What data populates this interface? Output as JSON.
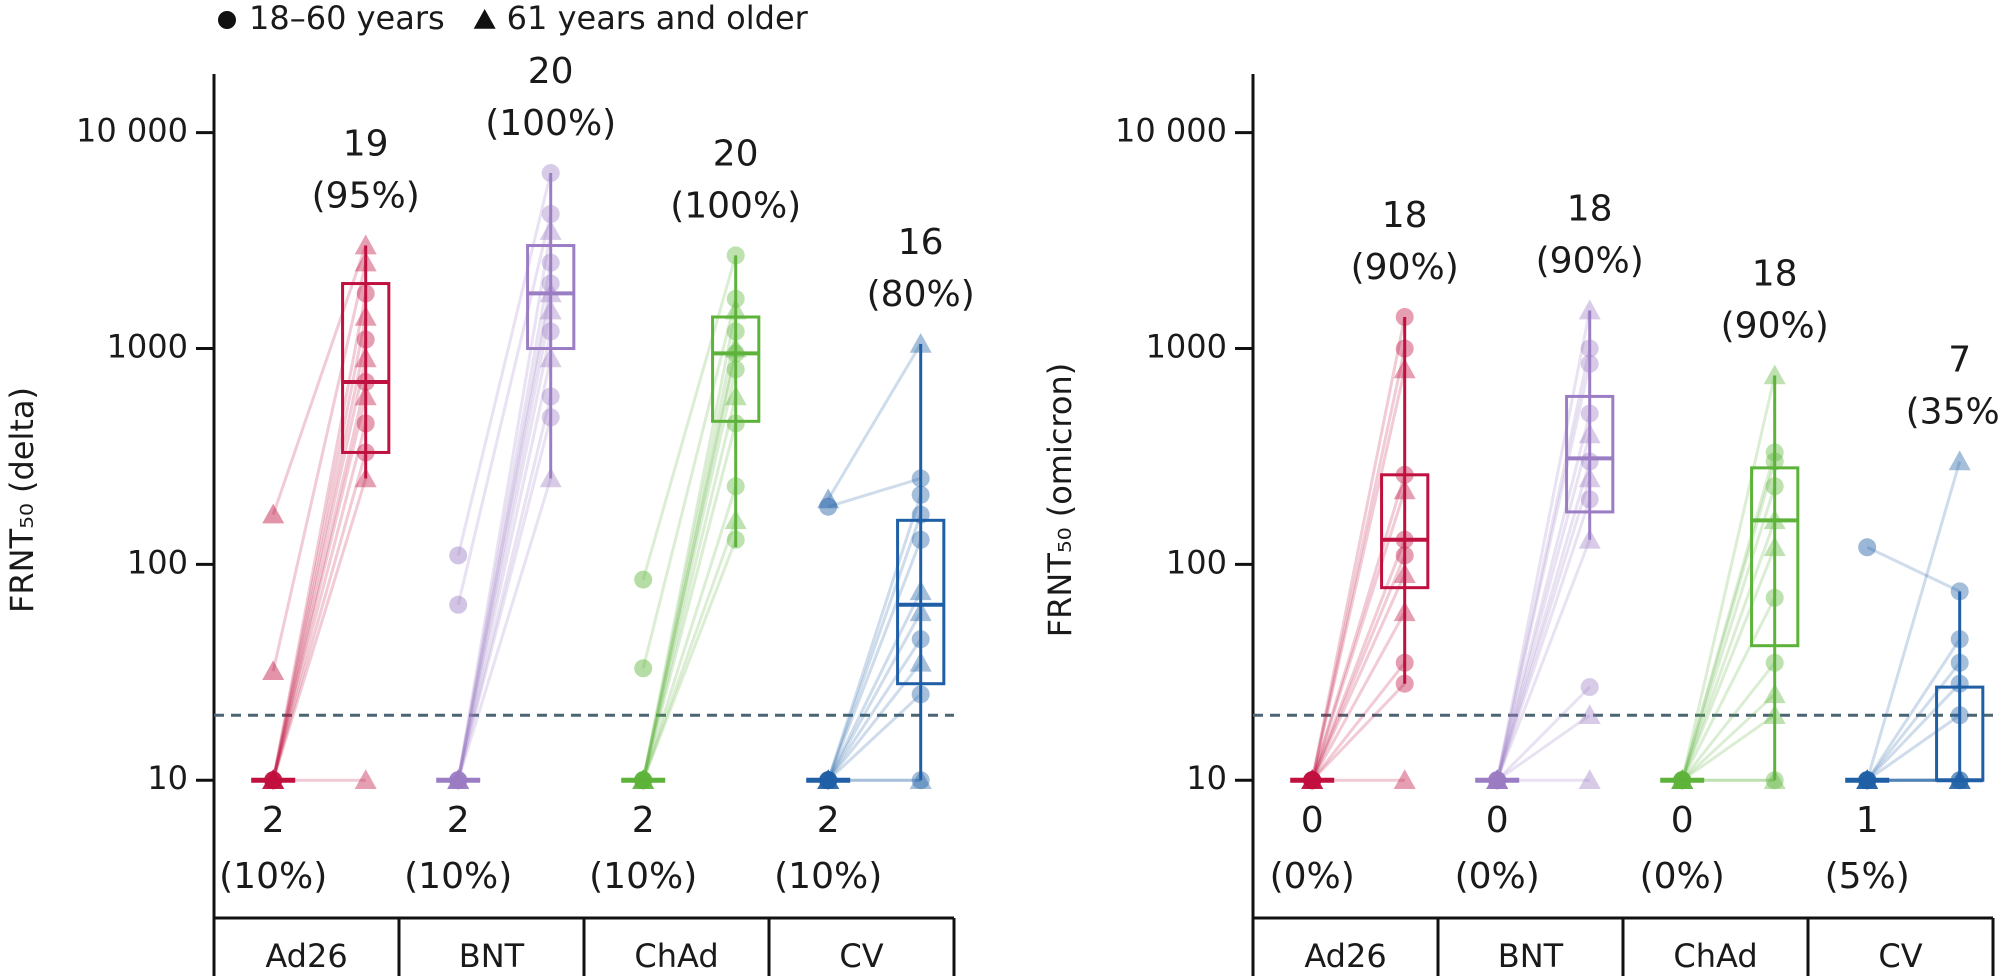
{
  "chart_data": [
    {
      "type": "box",
      "ylabel": "FRNT₅₀ (delta)",
      "log_scale": true,
      "ylim": [
        2.3,
        18700
      ],
      "yticks": [
        10,
        100,
        1000,
        {
          "value": 10000,
          "label": "10 000"
        }
      ],
      "threshold": 20,
      "threshold_color": "#4a6472",
      "legend": [
        {
          "label": "18–60 years",
          "marker": "circle"
        },
        {
          "label": "61 years and older",
          "marker": "triangle"
        }
      ],
      "categories": [
        "Ad26",
        "BNT",
        "ChAd",
        "CV"
      ],
      "groups": [
        {
          "color": "#c0103f",
          "baseline_median": 10,
          "baseline": [
            170,
            32,
            10,
            10,
            10,
            10,
            10,
            10,
            10,
            10,
            10,
            10
          ],
          "followup": [
            3000,
            2500,
            1800,
            1400,
            1100,
            900,
            700,
            600,
            450,
            330,
            250,
            10
          ],
          "markers": [
            "triangle",
            "triangle",
            "circle",
            "triangle",
            "circle",
            "triangle",
            "circle",
            "triangle",
            "circle",
            "circle",
            "triangle",
            "triangle"
          ],
          "whisker_low": 250,
          "q1": 330,
          "median": 700,
          "q3": 2000,
          "whisker_high": 3000,
          "above_count": 19,
          "above_label": "(95%)",
          "below_count": 2,
          "below_label": "(10%)"
        },
        {
          "color": "#9b7dc4",
          "baseline_median": 10,
          "baseline": [
            110,
            65,
            10,
            10,
            10,
            10,
            10,
            10,
            10,
            10,
            10,
            10
          ],
          "followup": [
            6500,
            4200,
            3500,
            2500,
            2000,
            1800,
            1500,
            1200,
            900,
            600,
            480,
            250
          ],
          "markers": [
            "circle",
            "circle",
            "triangle",
            "circle",
            "circle",
            "triangle",
            "triangle",
            "circle",
            "triangle",
            "circle",
            "circle",
            "triangle"
          ],
          "whisker_low": 250,
          "q1": 1000,
          "median": 1800,
          "q3": 3000,
          "whisker_high": 6500,
          "above_count": 20,
          "above_label": "(100%)",
          "below_count": 2,
          "below_label": "(10%)"
        },
        {
          "color": "#5db33a",
          "baseline_median": 10,
          "baseline": [
            85,
            33,
            10,
            10,
            10,
            10,
            10,
            10,
            10,
            10,
            10,
            10
          ],
          "followup": [
            2700,
            1700,
            1500,
            1200,
            1000,
            950,
            800,
            600,
            450,
            230,
            160,
            130
          ],
          "markers": [
            "circle",
            "circle",
            "triangle",
            "circle",
            "triangle",
            "circle",
            "circle",
            "triangle",
            "circle",
            "circle",
            "triangle",
            "circle"
          ],
          "whisker_low": 120,
          "q1": 460,
          "median": 950,
          "q3": 1400,
          "whisker_high": 2700,
          "above_count": 20,
          "above_label": "(100%)",
          "below_count": 2,
          "below_label": "(10%)"
        },
        {
          "color": "#1f5fa6",
          "baseline_median": 10,
          "baseline": [
            200,
            185,
            10,
            10,
            10,
            10,
            10,
            10,
            10,
            10,
            10,
            10
          ],
          "followup": [
            1050,
            250,
            210,
            170,
            130,
            75,
            60,
            45,
            35,
            25,
            10,
            10
          ],
          "markers": [
            "triangle",
            "circle",
            "circle",
            "circle",
            "circle",
            "triangle",
            "triangle",
            "circle",
            "triangle",
            "circle",
            "triangle",
            "circle"
          ],
          "whisker_low": 10,
          "q1": 28,
          "median": 65,
          "q3": 160,
          "whisker_high": 1050,
          "above_count": 16,
          "above_label": "(80%)",
          "below_count": 2,
          "below_label": "(10%)"
        }
      ]
    },
    {
      "type": "box",
      "ylabel": "FRNT₅₀ (omicron)",
      "log_scale": true,
      "ylim": [
        2.3,
        18700
      ],
      "yticks": [
        10,
        100,
        1000,
        {
          "value": 10000,
          "label": "10 000"
        }
      ],
      "threshold": 20,
      "threshold_color": "#4a6472",
      "categories": [
        "Ad26",
        "BNT",
        "ChAd",
        "CV"
      ],
      "groups": [
        {
          "color": "#c0103f",
          "baseline_median": 10,
          "baseline": [
            10,
            10,
            10,
            10,
            10,
            10,
            10,
            10,
            10,
            10,
            10,
            10
          ],
          "followup": [
            1400,
            1000,
            800,
            260,
            220,
            130,
            110,
            90,
            60,
            35,
            28,
            10
          ],
          "markers": [
            "circle",
            "circle",
            "triangle",
            "circle",
            "triangle",
            "circle",
            "circle",
            "triangle",
            "triangle",
            "circle",
            "circle",
            "triangle"
          ],
          "whisker_low": 28,
          "q1": 78,
          "median": 130,
          "q3": 260,
          "whisker_high": 1400,
          "above_count": 18,
          "above_label": "(90%)",
          "below_count": 0,
          "below_label": "(0%)"
        },
        {
          "color": "#9b7dc4",
          "baseline_median": 10,
          "baseline": [
            10,
            10,
            10,
            10,
            10,
            10,
            10,
            10,
            10,
            10,
            10,
            10
          ],
          "followup": [
            1500,
            1000,
            850,
            500,
            400,
            300,
            250,
            200,
            130,
            27,
            20,
            10
          ],
          "markers": [
            "triangle",
            "circle",
            "circle",
            "circle",
            "triangle",
            "circle",
            "triangle",
            "circle",
            "triangle",
            "circle",
            "triangle",
            "triangle"
          ],
          "whisker_low": 130,
          "q1": 175,
          "median": 310,
          "q3": 600,
          "whisker_high": 1500,
          "above_count": 18,
          "above_label": "(90%)",
          "below_count": 0,
          "below_label": "(0%)"
        },
        {
          "color": "#5db33a",
          "baseline_median": 10,
          "baseline": [
            10,
            10,
            10,
            10,
            10,
            10,
            10,
            10,
            10,
            10,
            10,
            10
          ],
          "followup": [
            750,
            330,
            300,
            230,
            160,
            120,
            70,
            35,
            25,
            20,
            10,
            10
          ],
          "markers": [
            "triangle",
            "circle",
            "circle",
            "circle",
            "triangle",
            "triangle",
            "circle",
            "circle",
            "triangle",
            "triangle",
            "triangle",
            "circle"
          ],
          "whisker_low": 10,
          "q1": 42,
          "median": 160,
          "q3": 280,
          "whisker_high": 750,
          "above_count": 18,
          "above_label": "(90%)",
          "below_count": 0,
          "below_label": "(0%)"
        },
        {
          "color": "#1f5fa6",
          "baseline_median": 10,
          "baseline": [
            120,
            10,
            10,
            10,
            10,
            10,
            10,
            10,
            10,
            10,
            10,
            10
          ],
          "followup": [
            75,
            300,
            45,
            35,
            28,
            20,
            10,
            10,
            10,
            10,
            10,
            10
          ],
          "markers": [
            "circle",
            "triangle",
            "circle",
            "circle",
            "circle",
            "circle",
            "triangle",
            "circle",
            "triangle",
            "circle",
            "triangle",
            "triangle"
          ],
          "whisker_low": 10,
          "q1": 10,
          "median": 10,
          "q3": 27,
          "whisker_high": 75,
          "above_count": 7,
          "above_label": "(35%)",
          "below_count": 1,
          "below_label": "(5%)"
        }
      ]
    }
  ]
}
